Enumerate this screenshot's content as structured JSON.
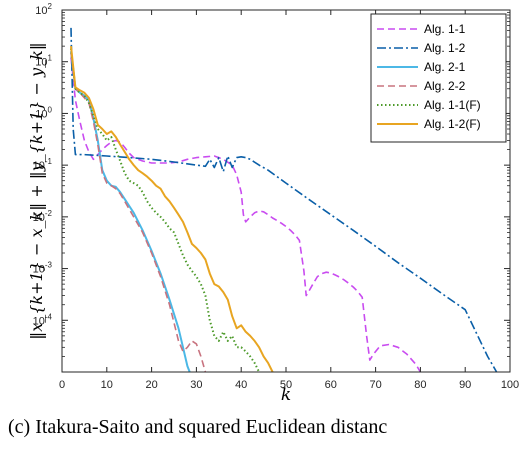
{
  "caption": "(c) Itakura-Saito and squared Euclidean distanc",
  "chart_data": {
    "type": "line",
    "title": "",
    "xlabel": "k",
    "ylabel": "‖x_{k+1} − x_k‖ + ‖y_{k+1} − y_k‖",
    "xlim": [
      0,
      100
    ],
    "ylim": [
      1e-05,
      100
    ],
    "yscale": "log",
    "x_ticks": [
      0,
      10,
      20,
      30,
      40,
      50,
      60,
      70,
      80,
      90,
      100
    ],
    "y_ticks": [
      {
        "value": 0.0001,
        "base": "10",
        "exp": "-4"
      },
      {
        "value": 0.001,
        "base": "10",
        "exp": "-3"
      },
      {
        "value": 0.01,
        "base": "10",
        "exp": "-2"
      },
      {
        "value": 0.1,
        "base": "10",
        "exp": "-1"
      },
      {
        "value": 1,
        "base": "10",
        "exp": "0"
      },
      {
        "value": 10,
        "base": "10",
        "exp": "1"
      },
      {
        "value": 100,
        "base": "10",
        "exp": "2"
      }
    ],
    "grid": false,
    "legend_position": "top-right",
    "series": [
      {
        "name": "Alg. 1-1",
        "color": "#c94cf0",
        "dash": "7,4",
        "width": 1.6,
        "points": [
          [
            2,
            12
          ],
          [
            3,
            1.8
          ],
          [
            4,
            0.7
          ],
          [
            5,
            0.3
          ],
          [
            6,
            0.18
          ],
          [
            7,
            0.13
          ],
          [
            8,
            0.16
          ],
          [
            9,
            0.2
          ],
          [
            10,
            0.24
          ],
          [
            11,
            0.28
          ],
          [
            12,
            0.3
          ],
          [
            13,
            0.28
          ],
          [
            14,
            0.22
          ],
          [
            15,
            0.17
          ],
          [
            16,
            0.14
          ],
          [
            17,
            0.13
          ],
          [
            18,
            0.12
          ],
          [
            20,
            0.11
          ],
          [
            22,
            0.11
          ],
          [
            24,
            0.11
          ],
          [
            26,
            0.115
          ],
          [
            28,
            0.13
          ],
          [
            30,
            0.14
          ],
          [
            32,
            0.145
          ],
          [
            34,
            0.15
          ],
          [
            36,
            0.13
          ],
          [
            38,
            0.1
          ],
          [
            39,
            0.065
          ],
          [
            40,
            0.03
          ],
          [
            40.5,
            0.011
          ],
          [
            41,
            0.008
          ],
          [
            42,
            0.01
          ],
          [
            43,
            0.012
          ],
          [
            44,
            0.013
          ],
          [
            45,
            0.0125
          ],
          [
            46,
            0.011
          ],
          [
            47,
            0.0095
          ],
          [
            48,
            0.0085
          ],
          [
            49,
            0.0075
          ],
          [
            50,
            0.0065
          ],
          [
            51,
            0.0055
          ],
          [
            52,
            0.0045
          ],
          [
            53,
            0.0035
          ],
          [
            54,
            0.0009
          ],
          [
            54.5,
            0.0003
          ],
          [
            55,
            0.00035
          ],
          [
            56,
            0.0005
          ],
          [
            57,
            0.0007
          ],
          [
            58,
            0.0008
          ],
          [
            59,
            0.00085
          ],
          [
            60,
            0.00082
          ],
          [
            61,
            0.00075
          ],
          [
            62,
            0.00068
          ],
          [
            63,
            0.0006
          ],
          [
            64,
            0.00052
          ],
          [
            65,
            0.00044
          ],
          [
            66,
            0.00036
          ],
          [
            67,
            0.00028
          ],
          [
            68,
            5e-05
          ],
          [
            68.7,
            1.7e-05
          ],
          [
            69.5,
            2.2e-05
          ],
          [
            71,
            3.2e-05
          ],
          [
            73,
            3.4e-05
          ],
          [
            75,
            3e-05
          ],
          [
            77,
            2.2e-05
          ],
          [
            79,
            1.4e-05
          ],
          [
            80,
            1e-05
          ]
        ]
      },
      {
        "name": "Alg. 1-2",
        "color": "#0a5fa8",
        "dash": "9,3,2,3",
        "width": 1.6,
        "points": [
          [
            2,
            45
          ],
          [
            2.5,
            0.5
          ],
          [
            3,
            0.16
          ],
          [
            5,
            0.16
          ],
          [
            10,
            0.15
          ],
          [
            15,
            0.14
          ],
          [
            20,
            0.13
          ],
          [
            25,
            0.115
          ],
          [
            30,
            0.1
          ],
          [
            32,
            0.095
          ],
          [
            33,
            0.13
          ],
          [
            34,
            0.09
          ],
          [
            35,
            0.14
          ],
          [
            36,
            0.075
          ],
          [
            37,
            0.15
          ],
          [
            38,
            0.09
          ],
          [
            39,
            0.14
          ],
          [
            40,
            0.145
          ],
          [
            41,
            0.14
          ],
          [
            42,
            0.13
          ],
          [
            44,
            0.1
          ],
          [
            46,
            0.08
          ],
          [
            50,
            0.045
          ],
          [
            55,
            0.022
          ],
          [
            60,
            0.011
          ],
          [
            65,
            0.0055
          ],
          [
            70,
            0.0027
          ],
          [
            75,
            0.0013
          ],
          [
            80,
            0.00065
          ],
          [
            85,
            0.00032
          ],
          [
            90,
            0.00016
          ],
          [
            95,
            2e-05
          ],
          [
            97,
            1e-05
          ]
        ]
      },
      {
        "name": "Alg. 2-1",
        "color": "#4cb8e6",
        "dash": "",
        "width": 2,
        "points": [
          [
            2,
            16
          ],
          [
            3,
            3
          ],
          [
            4,
            2.5
          ],
          [
            5,
            2.2
          ],
          [
            6,
            1.8
          ],
          [
            7,
            0.8
          ],
          [
            8,
            0.3
          ],
          [
            9,
            0.08
          ],
          [
            10,
            0.05
          ],
          [
            11,
            0.04
          ],
          [
            12,
            0.038
          ],
          [
            13,
            0.03
          ],
          [
            14,
            0.022
          ],
          [
            16,
            0.012
          ],
          [
            18,
            0.0055
          ],
          [
            20,
            0.0022
          ],
          [
            22,
            0.0008
          ],
          [
            24,
            0.00025
          ],
          [
            26,
            7e-05
          ],
          [
            27,
            3e-05
          ],
          [
            28,
            1.3e-05
          ],
          [
            28.5,
            1e-05
          ]
        ]
      },
      {
        "name": "Alg. 2-2",
        "color": "#c8737f",
        "dash": "7,4",
        "width": 1.6,
        "points": [
          [
            2,
            15
          ],
          [
            3,
            3
          ],
          [
            4,
            2.5
          ],
          [
            5,
            2
          ],
          [
            6,
            1.6
          ],
          [
            7,
            0.7
          ],
          [
            8,
            0.25
          ],
          [
            9,
            0.07
          ],
          [
            10,
            0.045
          ],
          [
            11,
            0.04
          ],
          [
            12,
            0.035
          ],
          [
            13,
            0.028
          ],
          [
            14,
            0.02
          ],
          [
            16,
            0.01
          ],
          [
            18,
            0.005
          ],
          [
            20,
            0.002
          ],
          [
            22,
            0.0007
          ],
          [
            24,
            0.0002
          ],
          [
            25,
            9e-05
          ],
          [
            26,
            4e-05
          ],
          [
            27,
            2.5e-05
          ],
          [
            28,
            3e-05
          ],
          [
            29,
            4e-05
          ],
          [
            30,
            3.5e-05
          ],
          [
            31,
            2e-05
          ],
          [
            32,
            1e-05
          ]
        ]
      },
      {
        "name": "Alg. 1-1(F)",
        "color": "#4d9a2a",
        "dash": "1.5,2.5",
        "width": 2,
        "points": [
          [
            2,
            18
          ],
          [
            3,
            3
          ],
          [
            4,
            2.5
          ],
          [
            5,
            2.2
          ],
          [
            6,
            1.6
          ],
          [
            7,
            0.9
          ],
          [
            8,
            0.5
          ],
          [
            9,
            0.4
          ],
          [
            10,
            0.3
          ],
          [
            11,
            0.35
          ],
          [
            12,
            0.2
          ],
          [
            13,
            0.12
          ],
          [
            14,
            0.07
          ],
          [
            15,
            0.05
          ],
          [
            16,
            0.045
          ],
          [
            17,
            0.04
          ],
          [
            18,
            0.03
          ],
          [
            19,
            0.02
          ],
          [
            20,
            0.015
          ],
          [
            21,
            0.012
          ],
          [
            22,
            0.01
          ],
          [
            23,
            0.008
          ],
          [
            24,
            0.006
          ],
          [
            25,
            0.005
          ],
          [
            26,
            0.003
          ],
          [
            27,
            0.0018
          ],
          [
            28,
            0.0012
          ],
          [
            29,
            0.0009
          ],
          [
            30,
            0.0007
          ],
          [
            31,
            0.0005
          ],
          [
            32,
            0.0003
          ],
          [
            33,
            0.0001
          ],
          [
            34,
            5e-05
          ],
          [
            35,
            4e-05
          ],
          [
            36,
            6e-05
          ],
          [
            37,
            4e-05
          ],
          [
            38,
            5e-05
          ],
          [
            39,
            3e-05
          ],
          [
            40,
            3e-05
          ],
          [
            41,
            2.5e-05
          ],
          [
            42,
            2e-05
          ],
          [
            43,
            1.5e-05
          ],
          [
            44,
            1e-05
          ]
        ]
      },
      {
        "name": "Alg. 1-2(F)",
        "color": "#e8a521",
        "dash": "",
        "width": 2,
        "points": [
          [
            2,
            20
          ],
          [
            3,
            3.2
          ],
          [
            4,
            2.8
          ],
          [
            5,
            2.5
          ],
          [
            6,
            2
          ],
          [
            7,
            1.2
          ],
          [
            8,
            0.6
          ],
          [
            9,
            0.5
          ],
          [
            10,
            0.4
          ],
          [
            11,
            0.45
          ],
          [
            12,
            0.35
          ],
          [
            13,
            0.25
          ],
          [
            14,
            0.18
          ],
          [
            15,
            0.13
          ],
          [
            16,
            0.1
          ],
          [
            17,
            0.08
          ],
          [
            18,
            0.07
          ],
          [
            19,
            0.06
          ],
          [
            20,
            0.05
          ],
          [
            21,
            0.04
          ],
          [
            22,
            0.035
          ],
          [
            23,
            0.025
          ],
          [
            24,
            0.02
          ],
          [
            25,
            0.015
          ],
          [
            26,
            0.011
          ],
          [
            27,
            0.008
          ],
          [
            28,
            0.005
          ],
          [
            29,
            0.003
          ],
          [
            30,
            0.0025
          ],
          [
            31,
            0.002
          ],
          [
            32,
            0.0015
          ],
          [
            33,
            0.0008
          ],
          [
            34,
            0.0005
          ],
          [
            35,
            0.00045
          ],
          [
            36,
            0.00035
          ],
          [
            37,
            0.00025
          ],
          [
            38,
            0.00012
          ],
          [
            39,
            7e-05
          ],
          [
            40,
            8e-05
          ],
          [
            41,
            6e-05
          ],
          [
            42,
            5e-05
          ],
          [
            43,
            4e-05
          ],
          [
            44,
            3e-05
          ],
          [
            45,
            2e-05
          ],
          [
            46,
            1.5e-05
          ],
          [
            47,
            1e-05
          ]
        ]
      }
    ]
  }
}
